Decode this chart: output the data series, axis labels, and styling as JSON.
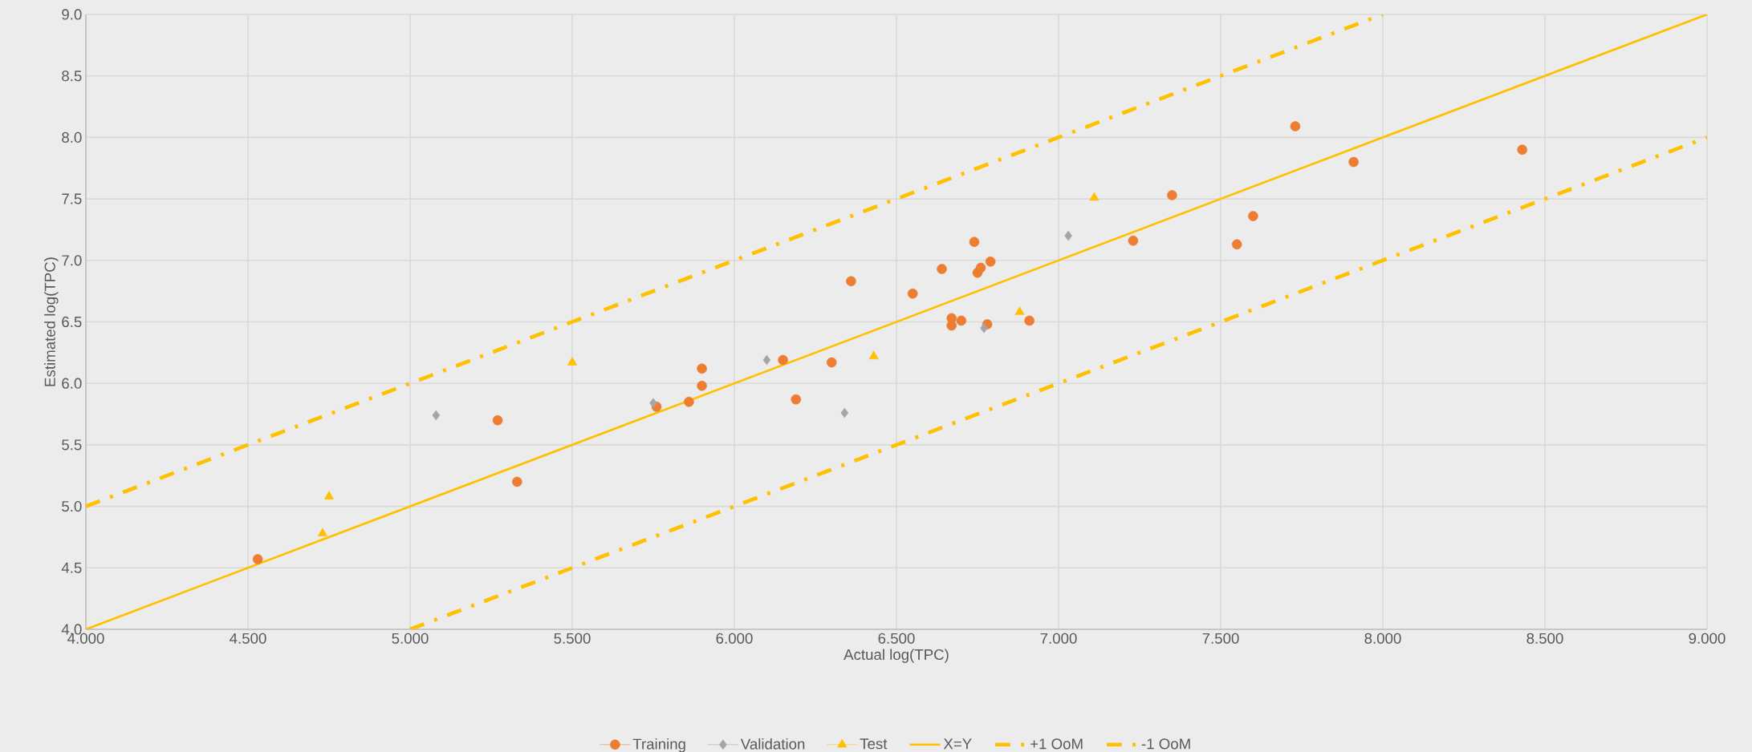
{
  "chart_data": {
    "type": "scatter",
    "xlabel": "Actual log(TPC)",
    "ylabel": "Estimated log(TPC)",
    "xlim": [
      4,
      9
    ],
    "ylim": [
      4,
      9
    ],
    "xticks": [
      {
        "value": 4,
        "label": "4.000"
      },
      {
        "value": 4.5,
        "label": "4.500"
      },
      {
        "value": 5,
        "label": "5.000"
      },
      {
        "value": 5.5,
        "label": "5.500"
      },
      {
        "value": 6,
        "label": "6.000"
      },
      {
        "value": 6.5,
        "label": "6.500"
      },
      {
        "value": 7,
        "label": "7.000"
      },
      {
        "value": 7.5,
        "label": "7.500"
      },
      {
        "value": 8,
        "label": "8.000"
      },
      {
        "value": 8.5,
        "label": "8.500"
      },
      {
        "value": 9,
        "label": "9.000"
      }
    ],
    "yticks": [
      {
        "value": 4,
        "label": "4.0"
      },
      {
        "value": 4.5,
        "label": "4.5"
      },
      {
        "value": 5,
        "label": "5.0"
      },
      {
        "value": 5.5,
        "label": "5.5"
      },
      {
        "value": 6,
        "label": "6.0"
      },
      {
        "value": 6.5,
        "label": "6.5"
      },
      {
        "value": 7,
        "label": "7.0"
      },
      {
        "value": 7.5,
        "label": "7.5"
      },
      {
        "value": 8,
        "label": "8.0"
      },
      {
        "value": 8.5,
        "label": "8.5"
      },
      {
        "value": 9,
        "label": "9.0"
      }
    ],
    "grid": true,
    "legend": "bottom",
    "series": [
      {
        "name": "Training",
        "color": "#ed7d31",
        "marker": "circle",
        "x": [
          4.53,
          5.27,
          5.33,
          5.76,
          5.86,
          5.9,
          5.9,
          6.15,
          6.19,
          6.3,
          6.36,
          6.55,
          6.64,
          6.67,
          6.67,
          6.7,
          6.74,
          6.75,
          6.76,
          6.79,
          6.78,
          6.91,
          7.23,
          7.35,
          7.55,
          7.6,
          7.73,
          7.91,
          8.43
        ],
        "values": [
          4.57,
          5.7,
          5.2,
          5.81,
          5.85,
          6.12,
          5.98,
          6.19,
          5.87,
          6.17,
          6.83,
          6.73,
          6.93,
          6.47,
          6.53,
          6.51,
          7.15,
          6.9,
          6.94,
          6.99,
          6.48,
          6.51,
          7.16,
          7.53,
          7.13,
          7.36,
          8.09,
          7.8,
          7.9
        ]
      },
      {
        "name": "Validation",
        "color": "#a5a5a5",
        "marker": "diamond",
        "x": [
          5.08,
          5.75,
          6.1,
          6.34,
          6.77,
          7.03
        ],
        "values": [
          5.74,
          5.84,
          6.19,
          5.76,
          6.45,
          7.2
        ]
      },
      {
        "name": "Test",
        "color": "#ffc000",
        "marker": "triangle",
        "x": [
          4.73,
          4.75,
          5.5,
          6.43,
          6.88,
          7.11
        ],
        "values": [
          4.78,
          5.08,
          6.17,
          6.22,
          6.58,
          7.51
        ]
      },
      {
        "name": "X=Y",
        "type": "line",
        "color": "#ffc000",
        "line_style": "solid",
        "x": [
          4,
          9
        ],
        "values": [
          4,
          9
        ]
      },
      {
        "name": "+1 OoM",
        "type": "line",
        "color": "#ffc000",
        "line_style": "dashdot",
        "x": [
          4,
          8
        ],
        "values": [
          5,
          9
        ]
      },
      {
        "name": "-1 OoM",
        "type": "line",
        "color": "#ffc000",
        "line_style": "dashdot",
        "x": [
          5,
          9
        ],
        "values": [
          4,
          8
        ]
      }
    ]
  }
}
